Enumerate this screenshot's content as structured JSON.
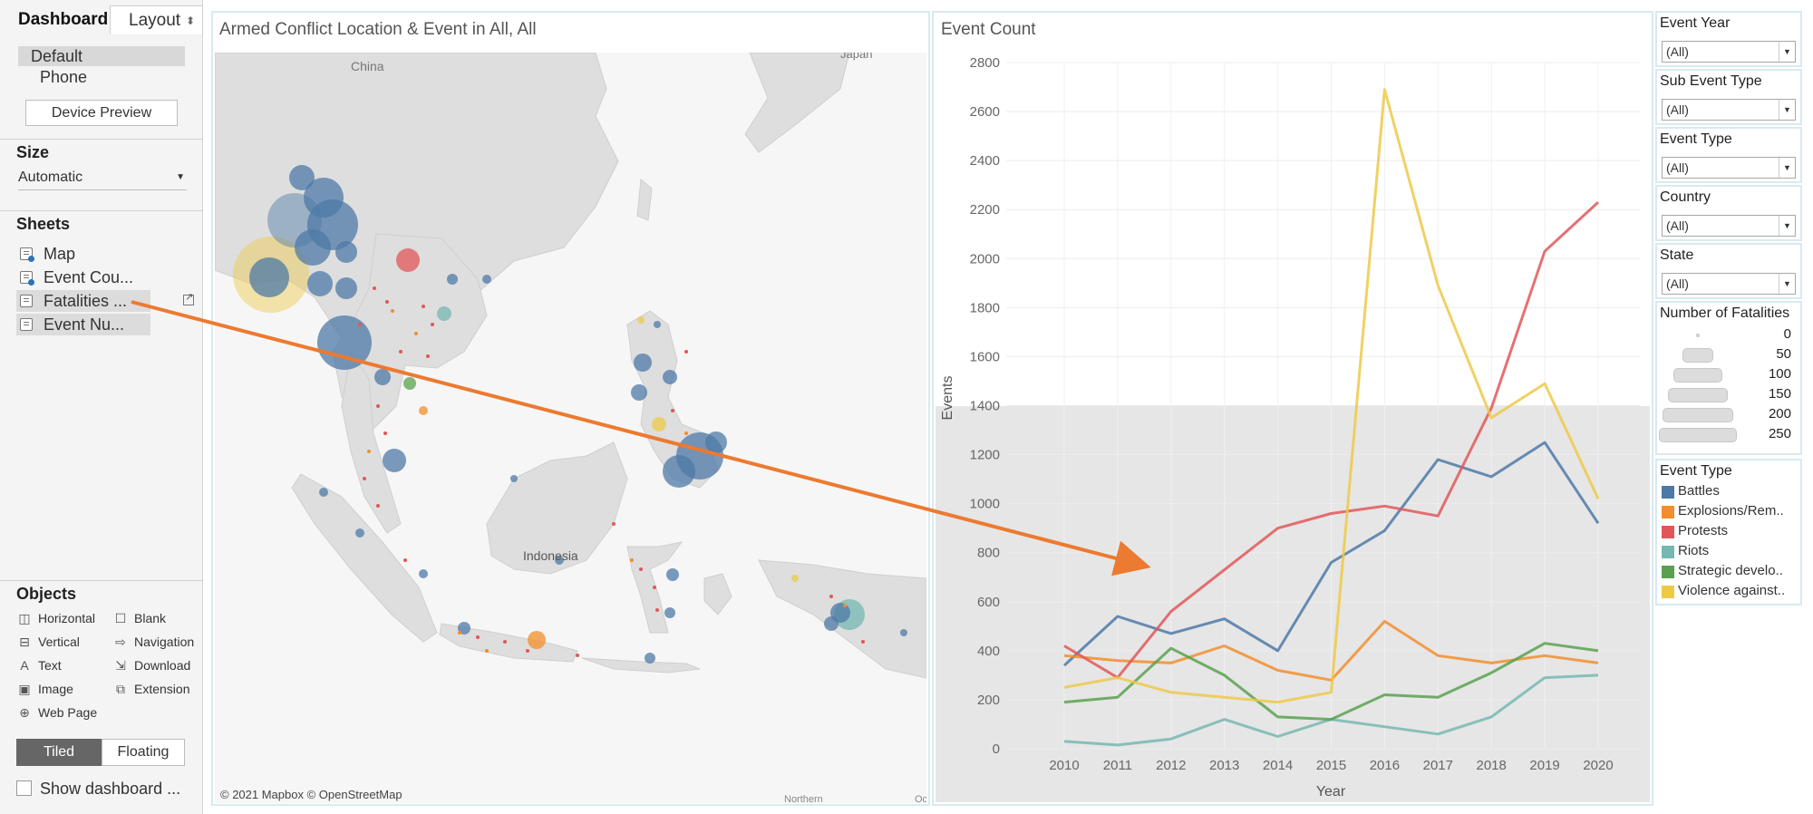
{
  "tabs": {
    "dashboard": "Dashboard",
    "layout": "Layout"
  },
  "device": {
    "default": "Default",
    "phone": "Phone",
    "preview_button": "Device Preview"
  },
  "size": {
    "heading": "Size",
    "value": "Automatic"
  },
  "sheets": {
    "heading": "Sheets",
    "items": [
      {
        "label": "Map"
      },
      {
        "label": "Event Cou..."
      },
      {
        "label": "Fatalities ..."
      },
      {
        "label": "Event Nu..."
      }
    ]
  },
  "objects": {
    "heading": "Objects",
    "items": [
      {
        "label": "Horizontal",
        "icon": "horizontal-container-icon"
      },
      {
        "label": "Blank",
        "icon": "blank-icon"
      },
      {
        "label": "Vertical",
        "icon": "vertical-container-icon"
      },
      {
        "label": "Navigation",
        "icon": "navigation-icon"
      },
      {
        "label": "Text",
        "icon": "text-icon"
      },
      {
        "label": "Download",
        "icon": "download-icon"
      },
      {
        "label": "Image",
        "icon": "image-icon"
      },
      {
        "label": "Extension",
        "icon": "extension-icon"
      },
      {
        "label": "Web Page",
        "icon": "globe-icon"
      }
    ]
  },
  "layout_mode": {
    "tiled": "Tiled",
    "floating": "Floating"
  },
  "show_title": "Show dashboard ...",
  "map": {
    "title": "Armed Conflict Location & Event in All, All",
    "labels": {
      "china": "China",
      "japan": "Japan",
      "indonesia": "Indonesia",
      "northern": "Northern",
      "edge": "Oc"
    },
    "attribution": "© 2021 Mapbox © OpenStreetMap"
  },
  "filters": [
    {
      "title": "Event Year",
      "value": "(All)"
    },
    {
      "title": "Sub Event Type",
      "value": "(All)"
    },
    {
      "title": "Event Type",
      "value": "(All)"
    },
    {
      "title": "Country",
      "value": "(All)"
    },
    {
      "title": "State",
      "value": "(All)"
    }
  ],
  "fatalities_legend": {
    "title": "Number of Fatalities",
    "levels": [
      "0",
      "50",
      "100",
      "150",
      "200",
      "250"
    ]
  },
  "type_legend": {
    "title": "Event Type",
    "items": [
      {
        "label": "Battles",
        "color": "#4e79a7"
      },
      {
        "label": "Explosions/Rem..",
        "color": "#f28e2b"
      },
      {
        "label": "Protests",
        "color": "#e15759"
      },
      {
        "label": "Riots",
        "color": "#76b7b2"
      },
      {
        "label": "Strategic develo..",
        "color": "#59a14f"
      },
      {
        "label": "Violence against..",
        "color": "#edc948"
      }
    ]
  },
  "chart_data": {
    "type": "line",
    "title": "Event Count",
    "xlabel": "Year",
    "ylabel": "Events",
    "x": [
      2010,
      2011,
      2012,
      2013,
      2014,
      2015,
      2016,
      2017,
      2018,
      2019,
      2020
    ],
    "ylim": [
      0,
      2800
    ],
    "yticks": [
      0,
      200,
      400,
      600,
      800,
      1000,
      1200,
      1400,
      1600,
      1800,
      2000,
      2200,
      2400,
      2600,
      2800
    ],
    "grid": true,
    "series": [
      {
        "name": "Battles",
        "color": "#4e79a7",
        "values": [
          340,
          540,
          470,
          530,
          400,
          760,
          890,
          1180,
          1110,
          1250,
          920
        ]
      },
      {
        "name": "Explosions/Rem..",
        "color": "#f28e2b",
        "values": [
          380,
          360,
          350,
          420,
          320,
          280,
          520,
          380,
          350,
          380,
          350
        ]
      },
      {
        "name": "Protests",
        "color": "#e15759",
        "values": [
          420,
          290,
          560,
          730,
          900,
          960,
          990,
          950,
          1390,
          2030,
          2230
        ]
      },
      {
        "name": "Riots",
        "color": "#76b7b2",
        "values": [
          30,
          15,
          40,
          120,
          50,
          120,
          90,
          60,
          130,
          290,
          300
        ]
      },
      {
        "name": "Strategic develo..",
        "color": "#59a14f",
        "values": [
          190,
          210,
          410,
          300,
          130,
          120,
          220,
          210,
          310,
          430,
          400
        ]
      },
      {
        "name": "Violence against..",
        "color": "#edc948",
        "values": [
          250,
          290,
          230,
          210,
          190,
          230,
          2690,
          1890,
          1350,
          1490,
          1020
        ]
      }
    ]
  }
}
